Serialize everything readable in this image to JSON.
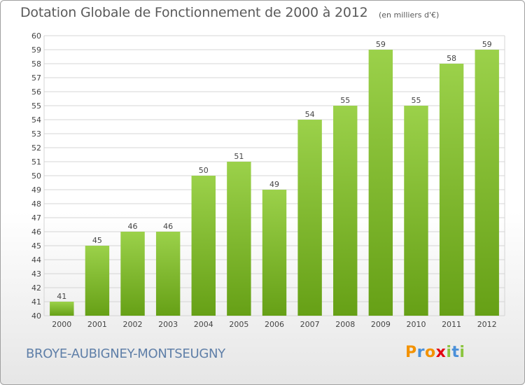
{
  "header": {
    "title": "Dotation Globale de Fonctionnement de 2000 à 2012",
    "subtitle": "(en milliers d'€)"
  },
  "footer": {
    "place": "BROYE-AUBIGNEY-MONTSEUGNY",
    "logo": "Proxiti"
  },
  "colors": {
    "bar_light": "#9bd14a",
    "bar_dark": "#66a016",
    "grid": "#d4d4d4",
    "logo": [
      "#f39200",
      "#4a90d9",
      "#f39200",
      "#e30613",
      "#8bc53f",
      "#4a90d9",
      "#8bc53f"
    ]
  },
  "chart_data": {
    "type": "bar",
    "title": "Dotation Globale de Fonctionnement de 2000 à 2012",
    "subtitle": "(en milliers d'€)",
    "categories": [
      "2000",
      "2001",
      "2002",
      "2003",
      "2004",
      "2005",
      "2006",
      "2007",
      "2008",
      "2009",
      "2010",
      "2011",
      "2012"
    ],
    "values": [
      41,
      45,
      46,
      46,
      50,
      51,
      49,
      54,
      55,
      59,
      55,
      58,
      59
    ],
    "ylim": [
      40,
      60
    ],
    "ytick_step": 1,
    "grid": true,
    "data_labels": true
  }
}
